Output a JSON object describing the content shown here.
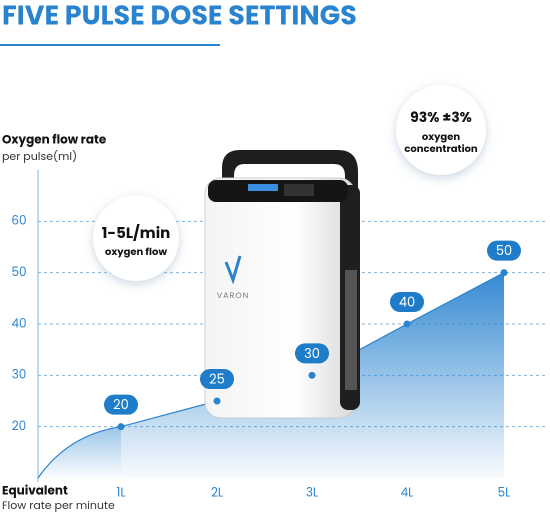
{
  "chart_data": {
    "type": "area",
    "title": "FIVE PULSE DOSE SETTINGS",
    "y_label": "Oxygen flow rate",
    "y_sublabel": "per pulse(ml)",
    "x_label": "Equivalent",
    "x_sublabel": "Flow rate per minute",
    "categories": [
      "1L",
      "2L",
      "3L",
      "4L",
      "5L"
    ],
    "values": [
      20,
      25,
      30,
      40,
      50
    ],
    "color": "#2a83cf",
    "ylim": [
      10,
      70
    ],
    "yticks": [
      20,
      30,
      40,
      50,
      60
    ],
    "grid": true,
    "annotations": [
      {
        "lines": [
          "1-5L/min",
          "oxygen flow"
        ]
      },
      {
        "lines": [
          "93% ±3%",
          "oxygen",
          "concentration"
        ]
      }
    ],
    "device": {
      "brand": "VARON"
    }
  }
}
